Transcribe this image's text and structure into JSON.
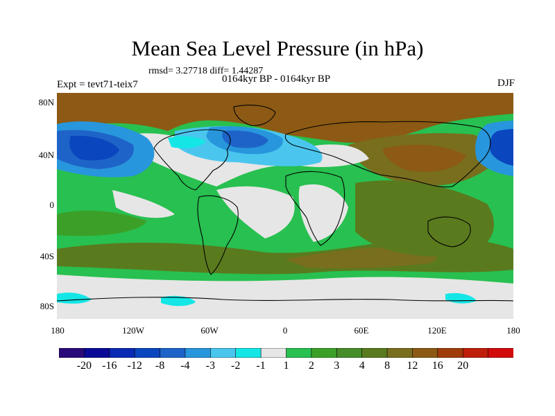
{
  "header": {
    "title": "Mean Sea Level Pressure (in hPa)",
    "rmsd_line": "rmsd= 3.27718 diff= 1.44287",
    "period": "0164kyr BP - 0164kyr BP",
    "experiment": "Expt = tevt71-teix7",
    "season": "DJF"
  },
  "axes": {
    "y_ticks": [
      "80N",
      "40N",
      "0",
      "40S",
      "80S"
    ],
    "x_ticks": [
      "180",
      "120W",
      "60W",
      "0",
      "60E",
      "120E",
      "180"
    ]
  },
  "colorbar": {
    "colors": [
      "#2a0a78",
      "#0a0a96",
      "#0a2ab4",
      "#0a46be",
      "#1e64c8",
      "#2896dc",
      "#4ac6ee",
      "#14e6e6",
      "#e6e6e6",
      "#28c050",
      "#3ca028",
      "#468c28",
      "#5a7a1e",
      "#786e1e",
      "#8c5a14",
      "#a03c0a",
      "#be1e0a",
      "#d20a0a"
    ],
    "labels": [
      "-20",
      "-16",
      "-12",
      "-8",
      "-4",
      "-3",
      "-2",
      "-1",
      "1",
      "2",
      "3",
      "4",
      "8",
      "12",
      "16",
      "20"
    ]
  }
}
